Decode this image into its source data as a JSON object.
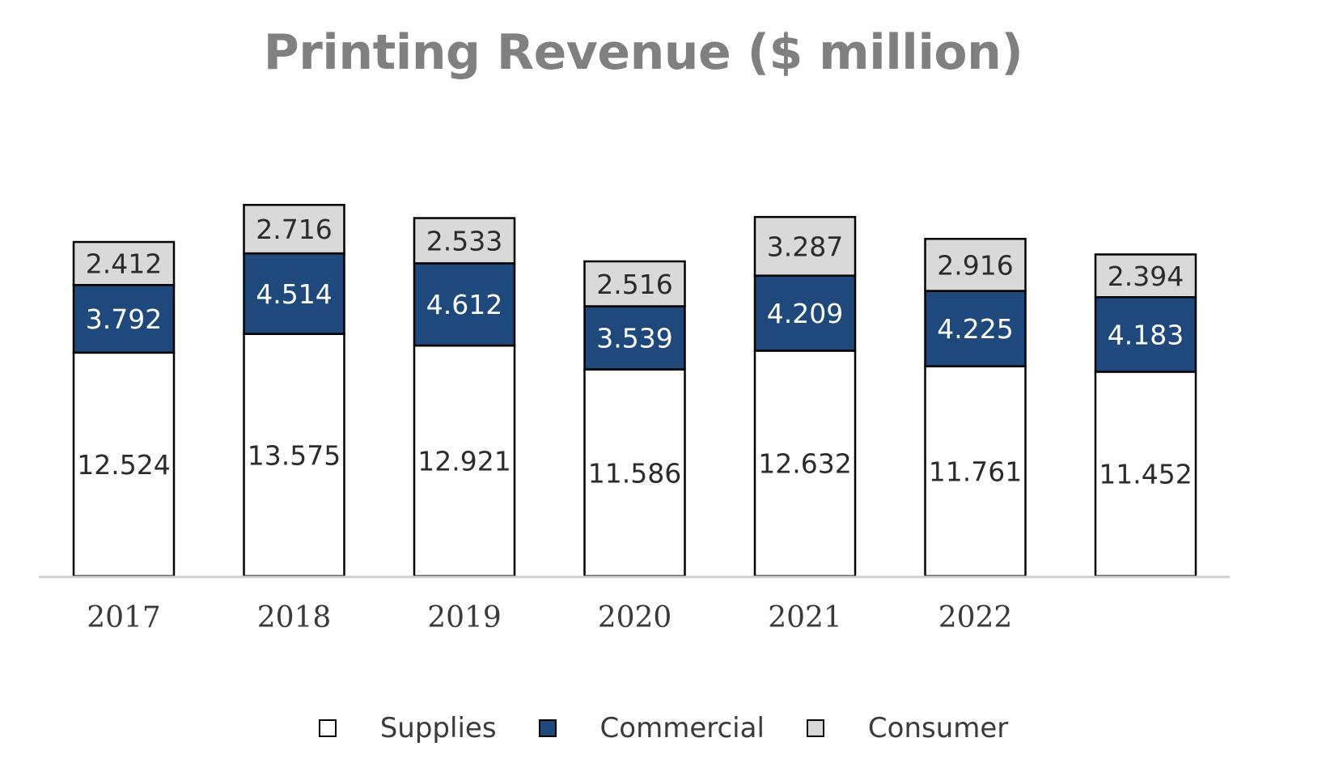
{
  "chart_data": {
    "type": "bar",
    "stacked": true,
    "title": "Printing Revenue ($ million)",
    "xlabel": "",
    "ylabel": "",
    "categories": [
      "2017",
      "2018",
      "2019",
      "2020",
      "2021",
      "2022",
      ""
    ],
    "series": [
      {
        "name": "Supplies",
        "color": "#ffffff",
        "label_color": "#2b2b2b",
        "values": [
          12.524,
          13.575,
          12.921,
          11.586,
          12.632,
          11.761,
          11.452
        ]
      },
      {
        "name": "Commercial",
        "color": "#1f497d",
        "label_color": "#ffffff",
        "values": [
          3.792,
          4.514,
          4.612,
          3.539,
          4.209,
          4.225,
          4.183
        ]
      },
      {
        "name": "Consumer",
        "color": "#d9d9d9",
        "label_color": "#2b2b2b",
        "values": [
          2.412,
          2.716,
          2.533,
          2.516,
          3.287,
          2.916,
          2.394
        ]
      }
    ],
    "data_labels": [
      [
        "12.524",
        "13.575",
        "12.921",
        "11.586",
        "12.632",
        "11.761",
        "11.452"
      ],
      [
        "3.792",
        "4.514",
        "4.612",
        "3.539",
        "4.209",
        "4.225",
        "4.183"
      ],
      [
        "2.412",
        "2.716",
        "2.533",
        "2.516",
        "3.287",
        "2.916",
        "2.394"
      ]
    ],
    "ylim": [
      0,
      26
    ],
    "grid": false,
    "legend_position": "bottom",
    "axis_color": "#d0d0d0"
  }
}
